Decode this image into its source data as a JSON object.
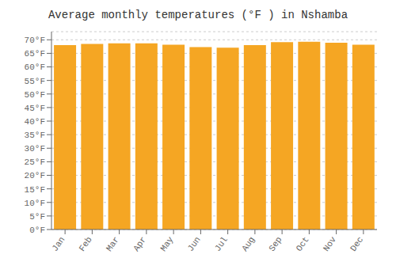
{
  "chart_data": {
    "type": "bar",
    "title": "Average monthly temperatures (°F ) in Nshamba",
    "categories": [
      "Jan",
      "Feb",
      "Mar",
      "Apr",
      "May",
      "Jun",
      "Jul",
      "Aug",
      "Sep",
      "Oct",
      "Nov",
      "Dec"
    ],
    "values": [
      68.0,
      68.5,
      68.7,
      68.7,
      68.2,
      67.3,
      67.1,
      68.0,
      69.1,
      69.3,
      68.9,
      68.2
    ],
    "color": "#F5A623",
    "ylim": [
      0,
      73
    ],
    "yticks": [
      {
        "value": 0,
        "label": "0°F"
      },
      {
        "value": 5,
        "label": "5°F"
      },
      {
        "value": 10,
        "label": "10°F"
      },
      {
        "value": 15,
        "label": "15°F"
      },
      {
        "value": 20,
        "label": "20°F"
      },
      {
        "value": 25,
        "label": "25°F"
      },
      {
        "value": 30,
        "label": "30°F"
      },
      {
        "value": 35,
        "label": "35°F"
      },
      {
        "value": 40,
        "label": "40°F"
      },
      {
        "value": 45,
        "label": "45°F"
      },
      {
        "value": 50,
        "label": "50°F"
      },
      {
        "value": 55,
        "label": "55°F"
      },
      {
        "value": 60,
        "label": "60°F"
      },
      {
        "value": 65,
        "label": "65°F"
      },
      {
        "value": 70,
        "label": "70°F"
      }
    ],
    "grid": true
  }
}
